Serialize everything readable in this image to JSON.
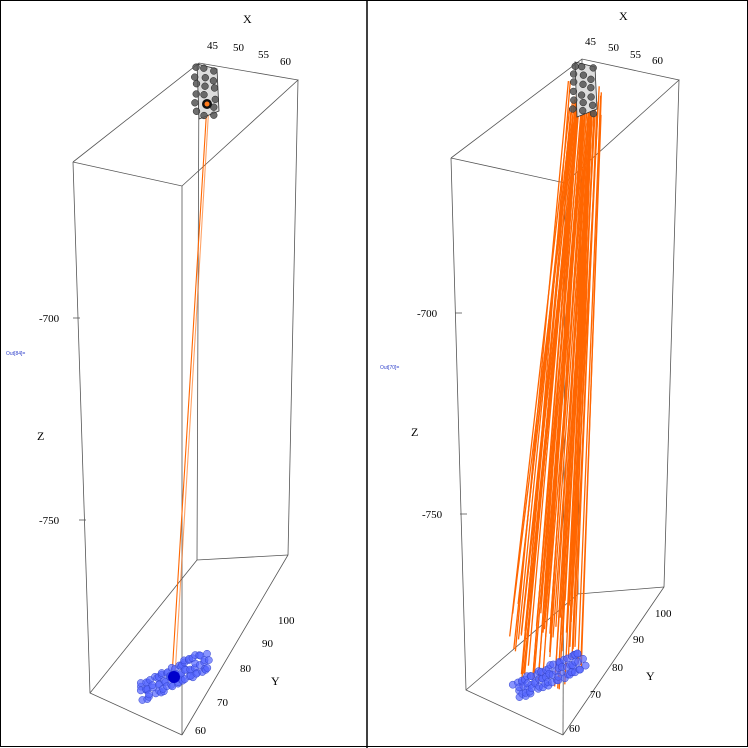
{
  "chart_data": [
    {
      "type": "scatter",
      "panel": "left",
      "output_label": "Out[84]=",
      "xlabel": "X",
      "ylabel": "Y",
      "zlabel": "Z",
      "x_ticks": [
        "45",
        "50",
        "55",
        "60"
      ],
      "y_ticks": [
        "60",
        "70",
        "80",
        "90",
        "100"
      ],
      "z_ticks": [
        "-700",
        "-750"
      ],
      "colors": {
        "rays": "#ff6600",
        "top_points": "#555555",
        "bottom_points": "#5566ff",
        "highlight": "#0000cc"
      },
      "series": [
        {
          "ray_count": 1
        }
      ]
    },
    {
      "type": "scatter",
      "panel": "right",
      "output_label": "Out[70]=",
      "xlabel": "X",
      "ylabel": "Y",
      "zlabel": "Z",
      "x_ticks": [
        "45",
        "50",
        "55",
        "60"
      ],
      "y_ticks": [
        "60",
        "70",
        "80",
        "90",
        "100"
      ],
      "z_ticks": [
        "-700",
        "-750"
      ],
      "colors": {
        "rays": "#ff6600",
        "top_points": "#555555",
        "bottom_points": "#5566ff"
      },
      "series": [
        {
          "ray_count": 60
        }
      ]
    }
  ]
}
